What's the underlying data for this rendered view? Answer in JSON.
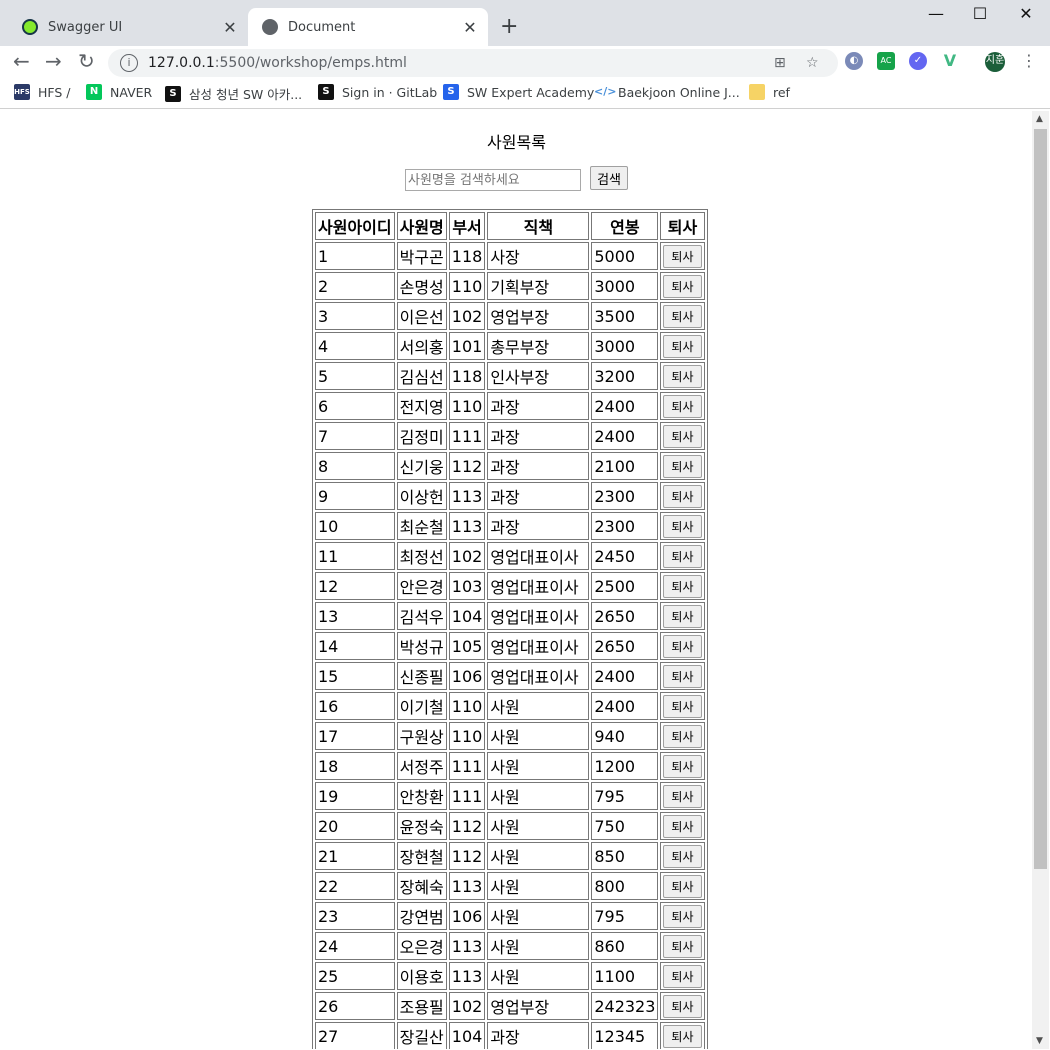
{
  "tabs": [
    {
      "label": "Swagger UI",
      "icon": "swagger-icon"
    },
    {
      "label": "Document",
      "icon": "globe-icon"
    }
  ],
  "address": {
    "host": "127.0.0.1",
    "path": ":5500/workshop/emps.html"
  },
  "profile_initials": "지훈",
  "bookmarks": [
    {
      "label": "HFS /",
      "icon": "hfs-icon"
    },
    {
      "label": "NAVER",
      "icon": "naver-icon"
    },
    {
      "label": "삼성 청년 SW 아카...",
      "icon": "ssafy-icon"
    },
    {
      "label": "Sign in · GitLab",
      "icon": "gitlab-icon"
    },
    {
      "label": "SW Expert Academy",
      "icon": "swea-icon"
    },
    {
      "label": "Baekjoon Online J...",
      "icon": "code-icon"
    },
    {
      "label": "ref",
      "icon": "folder-icon"
    }
  ],
  "page": {
    "title": "사원목록",
    "search_placeholder": "사원명을 검색하세요",
    "search_button": "검색"
  },
  "table": {
    "headers": [
      "사원아이디",
      "사원명",
      "부서",
      "직책",
      "연봉",
      "퇴사"
    ],
    "action_label": "퇴사",
    "rows": [
      [
        "1",
        "박구곤",
        "118",
        "사장",
        "5000"
      ],
      [
        "2",
        "손명성",
        "110",
        "기획부장",
        "3000"
      ],
      [
        "3",
        "이은선",
        "102",
        "영업부장",
        "3500"
      ],
      [
        "4",
        "서의홍",
        "101",
        "총무부장",
        "3000"
      ],
      [
        "5",
        "김심선",
        "118",
        "인사부장",
        "3200"
      ],
      [
        "6",
        "전지영",
        "110",
        "과장",
        "2400"
      ],
      [
        "7",
        "김정미",
        "111",
        "과장",
        "2400"
      ],
      [
        "8",
        "신기웅",
        "112",
        "과장",
        "2100"
      ],
      [
        "9",
        "이상헌",
        "113",
        "과장",
        "2300"
      ],
      [
        "10",
        "최순철",
        "113",
        "과장",
        "2300"
      ],
      [
        "11",
        "최정선",
        "102",
        "영업대표이사",
        "2450"
      ],
      [
        "12",
        "안은경",
        "103",
        "영업대표이사",
        "2500"
      ],
      [
        "13",
        "김석우",
        "104",
        "영업대표이사",
        "2650"
      ],
      [
        "14",
        "박성규",
        "105",
        "영업대표이사",
        "2650"
      ],
      [
        "15",
        "신종필",
        "106",
        "영업대표이사",
        "2400"
      ],
      [
        "16",
        "이기철",
        "110",
        "사원",
        "2400"
      ],
      [
        "17",
        "구원상",
        "110",
        "사원",
        "940"
      ],
      [
        "18",
        "서정주",
        "111",
        "사원",
        "1200"
      ],
      [
        "19",
        "안창환",
        "111",
        "사원",
        "795"
      ],
      [
        "20",
        "윤정숙",
        "112",
        "사원",
        "750"
      ],
      [
        "21",
        "장현철",
        "112",
        "사원",
        "850"
      ],
      [
        "22",
        "장혜숙",
        "113",
        "사원",
        "800"
      ],
      [
        "23",
        "강연범",
        "106",
        "사원",
        "795"
      ],
      [
        "24",
        "오은경",
        "113",
        "사원",
        "860"
      ],
      [
        "25",
        "이용호",
        "113",
        "사원",
        "1100"
      ],
      [
        "26",
        "조용필",
        "102",
        "영업부장",
        "242323"
      ],
      [
        "27",
        "장길산",
        "104",
        "과장",
        "12345"
      ],
      [
        "28",
        "",
        "",
        "",
        ""
      ]
    ]
  }
}
